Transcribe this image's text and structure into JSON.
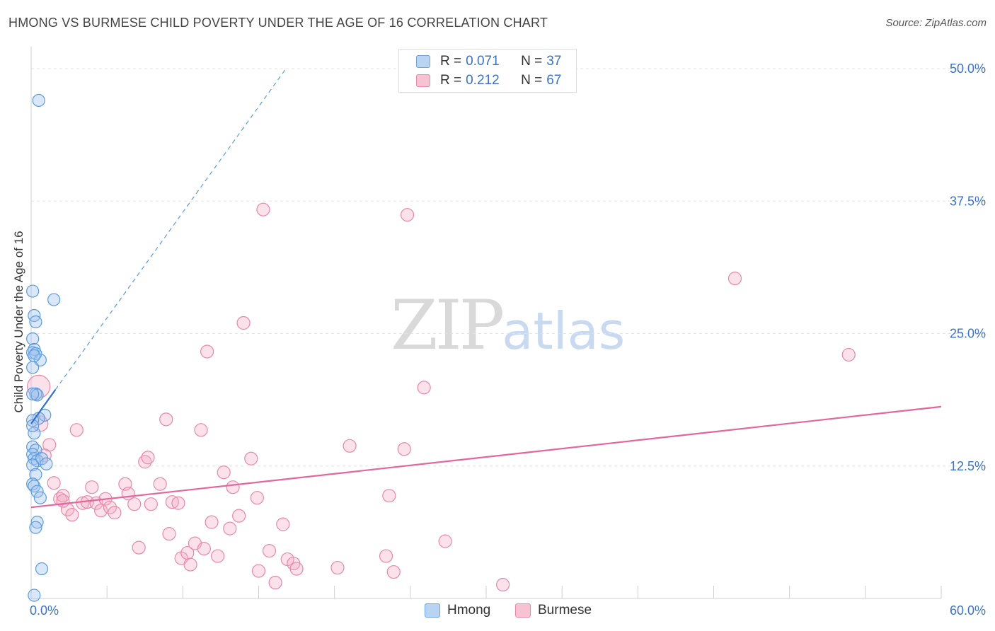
{
  "title": "HMONG VS BURMESE CHILD POVERTY UNDER THE AGE OF 16 CORRELATION CHART",
  "source": "Source: ZipAtlas.com",
  "watermark": {
    "zip": "ZIP",
    "atlas": "atlas"
  },
  "legend_top": {
    "hmong": {
      "r_label": "R = ",
      "r_value": "0.071",
      "n_label": "N = ",
      "n_value": "37"
    },
    "burmese": {
      "r_label": "R = ",
      "r_value": "0.212",
      "n_label": "N = ",
      "n_value": "67"
    }
  },
  "legend_bottom": {
    "hmong": "Hmong",
    "burmese": "Burmese"
  },
  "colors": {
    "hmong": "#5b9bdf",
    "burmese": "#e889a8",
    "hmong_line": "#2f6fcd",
    "burmese_line": "#e2679a",
    "tick_label": "#3a73c8"
  },
  "chart_data": {
    "type": "scatter",
    "title": "HMONG VS BURMESE CHILD POVERTY UNDER THE AGE OF 16 CORRELATION CHART",
    "xlabel": "",
    "ylabel": "Child Poverty Under the Age of 16",
    "xlim": [
      0,
      60
    ],
    "ylim": [
      0,
      50
    ],
    "x_tick_labels": [
      {
        "value": 0,
        "label": "0.0%"
      },
      {
        "value": 60,
        "label": "60.0%"
      }
    ],
    "y_tick_labels": [
      {
        "value": 12.5,
        "label": "12.5%"
      },
      {
        "value": 25,
        "label": "25.0%"
      },
      {
        "value": 37.5,
        "label": "37.5%"
      },
      {
        "value": 50,
        "label": "50.0%"
      }
    ],
    "series": [
      {
        "name": "Hmong",
        "points": [
          [
            0.5,
            47.0
          ],
          [
            0.1,
            29.0
          ],
          [
            1.5,
            28.2
          ],
          [
            0.2,
            26.7
          ],
          [
            0.3,
            26.1
          ],
          [
            0.1,
            24.5
          ],
          [
            0.2,
            23.5
          ],
          [
            0.1,
            23.2
          ],
          [
            0.3,
            23.1
          ],
          [
            0.6,
            22.5
          ],
          [
            0.1,
            21.8
          ],
          [
            0.3,
            19.3
          ],
          [
            0.4,
            19.2
          ],
          [
            0.1,
            19.3
          ],
          [
            0.9,
            17.3
          ],
          [
            0.5,
            17.0
          ],
          [
            0.1,
            16.8
          ],
          [
            0.2,
            15.6
          ],
          [
            0.1,
            14.3
          ],
          [
            0.3,
            14.0
          ],
          [
            0.1,
            13.6
          ],
          [
            0.2,
            13.2
          ],
          [
            0.4,
            13.0
          ],
          [
            0.7,
            13.2
          ],
          [
            1.0,
            12.7
          ],
          [
            0.1,
            12.6
          ],
          [
            0.3,
            11.7
          ],
          [
            0.1,
            10.8
          ],
          [
            0.2,
            10.6
          ],
          [
            0.4,
            10.1
          ],
          [
            0.6,
            9.5
          ],
          [
            0.4,
            7.2
          ],
          [
            0.3,
            6.7
          ],
          [
            0.7,
            2.8
          ],
          [
            0.2,
            0.3
          ],
          [
            0.1,
            16.3
          ],
          [
            0.2,
            22.9
          ]
        ],
        "trend": {
          "x": [
            0.0,
            1.6
          ],
          "y": [
            16.5,
            19.7
          ],
          "dashed_extension_to": [
            16.8,
            50.0
          ]
        }
      },
      {
        "name": "Burmese",
        "points": [
          [
            0.5,
            20.0
          ],
          [
            0.6,
            16.5
          ],
          [
            1.2,
            14.5
          ],
          [
            0.9,
            13.5
          ],
          [
            1.5,
            10.9
          ],
          [
            1.9,
            9.4
          ],
          [
            2.1,
            9.7
          ],
          [
            2.4,
            8.4
          ],
          [
            2.7,
            7.9
          ],
          [
            3.0,
            15.9
          ],
          [
            3.4,
            9.0
          ],
          [
            3.7,
            9.1
          ],
          [
            4.0,
            10.5
          ],
          [
            4.3,
            9.0
          ],
          [
            4.6,
            8.3
          ],
          [
            4.9,
            9.4
          ],
          [
            5.2,
            8.6
          ],
          [
            5.5,
            8.1
          ],
          [
            6.2,
            10.8
          ],
          [
            6.4,
            9.9
          ],
          [
            6.8,
            8.9
          ],
          [
            7.1,
            4.8
          ],
          [
            7.5,
            12.9
          ],
          [
            7.7,
            13.3
          ],
          [
            7.9,
            8.9
          ],
          [
            8.5,
            10.8
          ],
          [
            8.9,
            16.9
          ],
          [
            9.1,
            6.1
          ],
          [
            9.3,
            9.1
          ],
          [
            9.7,
            9.0
          ],
          [
            9.9,
            3.8
          ],
          [
            10.3,
            4.3
          ],
          [
            10.5,
            3.2
          ],
          [
            10.8,
            5.2
          ],
          [
            11.2,
            15.9
          ],
          [
            11.4,
            4.7
          ],
          [
            11.6,
            23.3
          ],
          [
            11.9,
            7.2
          ],
          [
            12.3,
            4.0
          ],
          [
            12.7,
            11.9
          ],
          [
            13.1,
            6.6
          ],
          [
            13.3,
            10.5
          ],
          [
            13.7,
            7.8
          ],
          [
            14.0,
            26.0
          ],
          [
            14.5,
            13.2
          ],
          [
            14.9,
            9.5
          ],
          [
            15.0,
            2.6
          ],
          [
            15.3,
            36.7
          ],
          [
            15.7,
            4.5
          ],
          [
            16.1,
            1.5
          ],
          [
            16.6,
            7.0
          ],
          [
            16.9,
            3.7
          ],
          [
            17.3,
            3.3
          ],
          [
            17.5,
            2.8
          ],
          [
            20.2,
            2.9
          ],
          [
            21.0,
            14.4
          ],
          [
            23.4,
            4.0
          ],
          [
            23.6,
            9.7
          ],
          [
            23.9,
            2.5
          ],
          [
            24.6,
            14.1
          ],
          [
            24.8,
            36.2
          ],
          [
            25.9,
            19.9
          ],
          [
            27.3,
            5.4
          ],
          [
            31.1,
            1.3
          ],
          [
            46.4,
            30.2
          ],
          [
            53.9,
            23.0
          ],
          [
            2.1,
            9.2
          ]
        ],
        "trend": {
          "x": [
            0.0,
            60.0
          ],
          "y": [
            8.6,
            18.1
          ]
        }
      }
    ]
  }
}
